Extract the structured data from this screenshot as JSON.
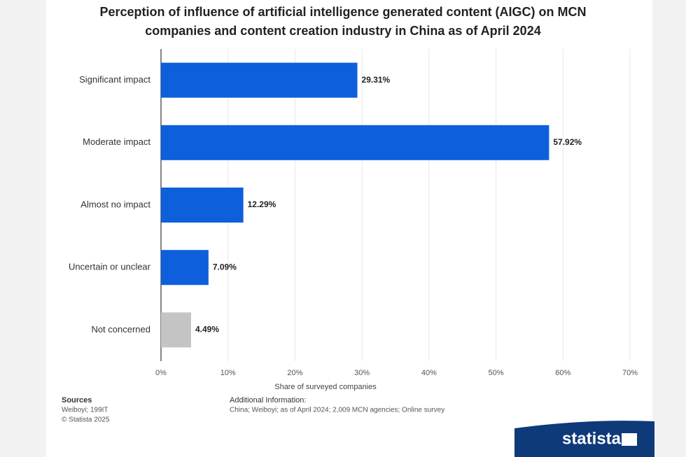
{
  "chart_data": {
    "type": "hbar",
    "title": "Perception of influence of artificial intelligence generated content (AIGC) on MCN companies and content creation industry in China as of April 2024",
    "categories": [
      "Significant impact",
      "Moderate impact",
      "Almost no impact",
      "Uncertain or unclear",
      "Not concerned"
    ],
    "values": [
      29.31,
      57.92,
      12.29,
      7.09,
      4.49
    ],
    "value_labels": [
      "29.31%",
      "57.92%",
      "12.29%",
      "7.09%",
      "4.49%"
    ],
    "colors": [
      "#0e5fdb",
      "#0e5fdb",
      "#0e5fdb",
      "#0e5fdb",
      "#c4c4c4"
    ],
    "xlim": [
      0,
      70
    ],
    "xticks": [
      {
        "value": 0,
        "label": "0%"
      },
      {
        "value": 10,
        "label": "10%"
      },
      {
        "value": 20,
        "label": "20%"
      },
      {
        "value": 30,
        "label": "30%"
      },
      {
        "value": 40,
        "label": "40%"
      },
      {
        "value": 50,
        "label": "50%"
      },
      {
        "value": 60,
        "label": "60%"
      },
      {
        "value": 70,
        "label": "70%"
      }
    ],
    "xlabel": "Share of surveyed companies",
    "grid": true,
    "sources_title": "Sources",
    "sources": "Weiboyi; 199IT",
    "copyright": "© Statista 2025",
    "additional_info_title": "Additional Information:",
    "additional_info": "China; Weiboyi; as of April 2024; 2,009 MCN agencies; Online survey"
  },
  "brand": "statista"
}
